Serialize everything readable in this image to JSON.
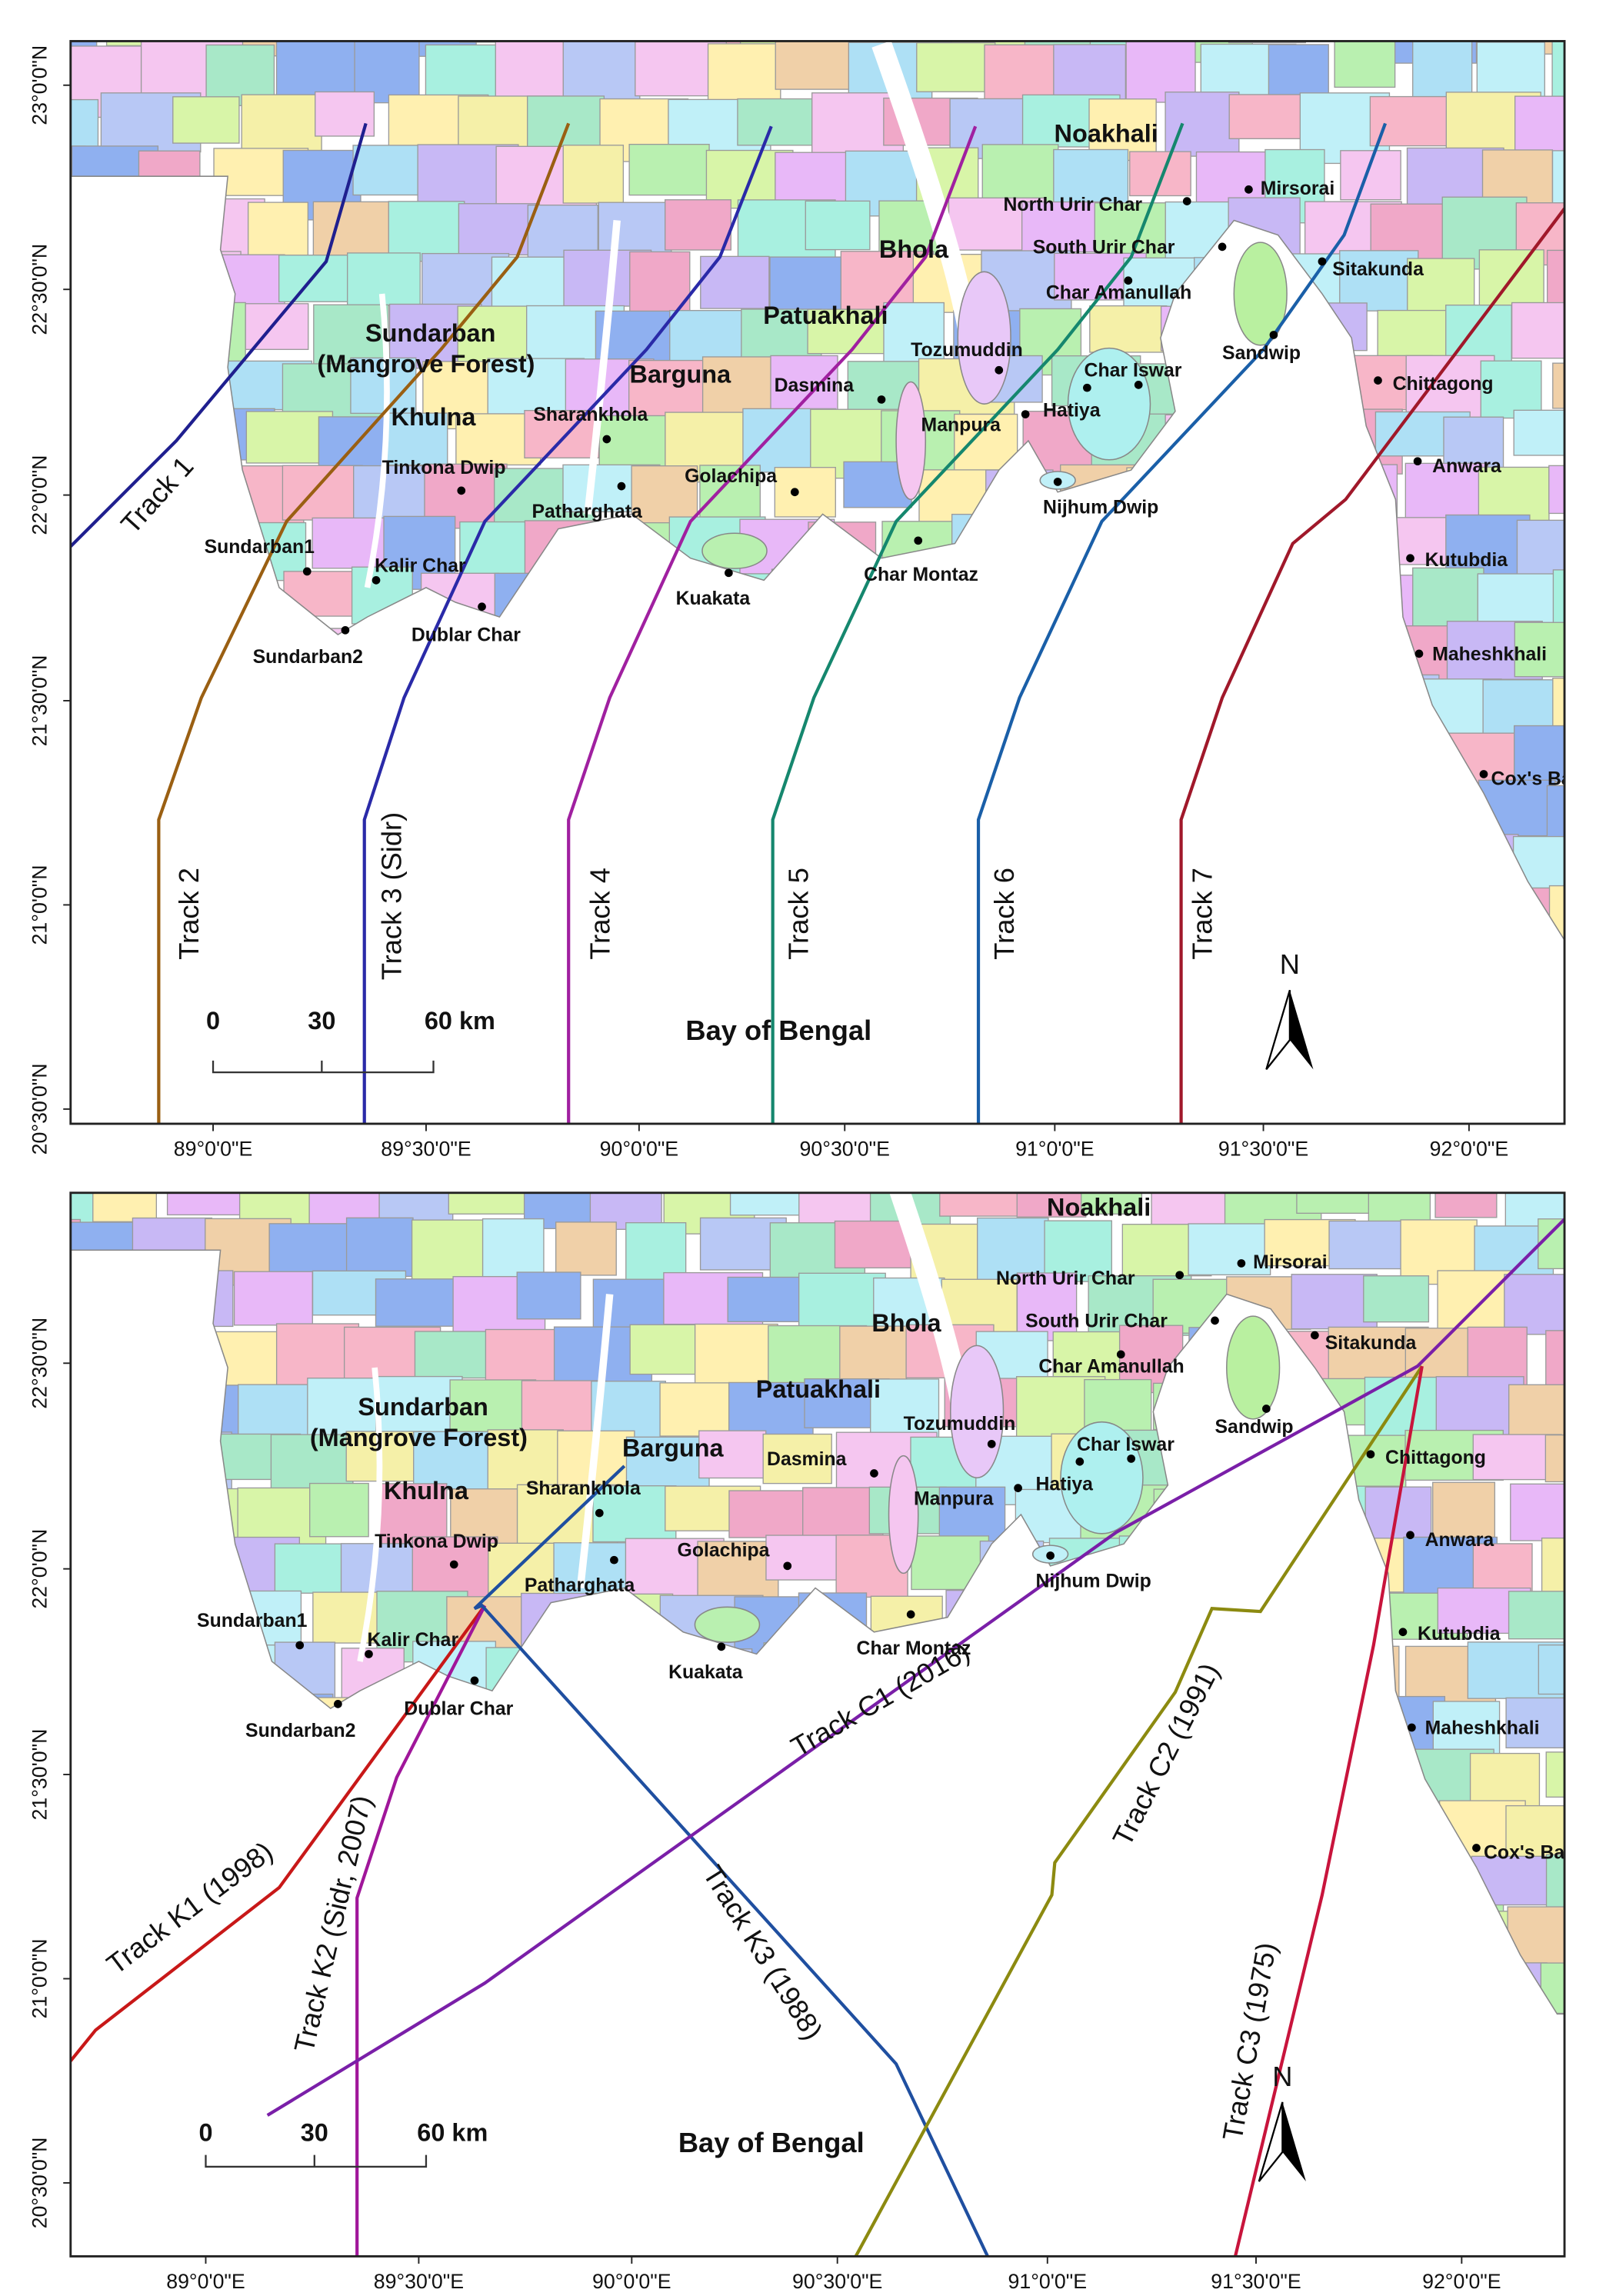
{
  "panels": [
    {
      "y_axis_labels": [
        "23°0'0\"N",
        "22°30'0\"N",
        "22°0'0\"N",
        "21°30'0\"N",
        "21°0'0\"N",
        "20°30'0\"N"
      ],
      "x_axis_labels": [
        "89°0'0\"E",
        "89°30'0\"E",
        "90°0'0\"E",
        "90°30'0\"E",
        "91°0'0\"E",
        "91°30'0\"E",
        "92°0'0\"E"
      ],
      "regions": [
        "Noakhali",
        "Bhola",
        "Patuakhali",
        "Sundarban",
        "(Mangrove Forest)",
        "Khulna",
        "Barguna"
      ],
      "places": [
        "Mirsorai",
        "North Urir Char",
        "South Urir Char",
        "Sitakunda",
        "Char Amanullah",
        "Sandwip",
        "Tozumuddin",
        "Char Iswar",
        "Chittagong",
        "Dasmina",
        "Hatiya",
        "Manpura",
        "Sharankhola",
        "Anwara",
        "Tinkona Dwip",
        "Golachipa",
        "Patharghata",
        "Nijhum Dwip",
        "Char Montaz",
        "Kutubdia",
        "Sundarban1",
        "Kalir Char",
        "Kuakata",
        "Dublar Char",
        "Sundarban2",
        "Maheshkhali",
        "Cox's Bazar"
      ],
      "tracks": [
        "Track 1",
        "Track 2",
        "Track 3 (Sidr)",
        "Track 4",
        "Track 5",
        "Track 6",
        "Track 7"
      ],
      "scale_bar": [
        "0",
        "30",
        "60 km"
      ],
      "sea_label": "Bay of Bengal",
      "north_label": "N"
    },
    {
      "y_axis_labels": [
        "22°30'0\"N",
        "22°0'0\"N",
        "21°30'0\"N",
        "21°0'0\"N",
        "20°30'0\"N"
      ],
      "x_axis_labels": [
        "89°0'0\"E",
        "89°30'0\"E",
        "90°0'0\"E",
        "90°30'0\"E",
        "91°0'0\"E",
        "91°30'0\"E",
        "92°0'0\"E"
      ],
      "regions": [
        "Noakhali",
        "Bhola",
        "Patuakhali",
        "Sundarban",
        "(Mangrove Forest)",
        "Khulna",
        "Barguna"
      ],
      "places": [
        "Mirsorai",
        "North Urir Char",
        "South Urir Char",
        "Sitakunda",
        "Char Amanullah",
        "Sandwip",
        "Tozumuddin",
        "Char Iswar",
        "Chittagong",
        "Dasmina",
        "Hatiya",
        "Manpura",
        "Sharankhola",
        "Anwara",
        "Tinkona Dwip",
        "Golachipa",
        "Patharghata",
        "Nijhum Dwip",
        "Char Montaz",
        "Kutubdia",
        "Sundarban1",
        "Kalir Char",
        "Kuakata",
        "Dublar Char",
        "Sundarban2",
        "Maheshkhali",
        "Cox's Bazar"
      ],
      "tracks": [
        "Track K1 (1998)",
        "Track K2 (Sidr, 2007)",
        "Track K3 (1988)",
        "Track C1 (2016)",
        "Track C2 (1991)",
        "Track C3 (1975)"
      ],
      "scale_bar": [
        "0",
        "30",
        "60 km"
      ],
      "sea_label": "Bay of Bengal",
      "north_label": "N"
    }
  ]
}
